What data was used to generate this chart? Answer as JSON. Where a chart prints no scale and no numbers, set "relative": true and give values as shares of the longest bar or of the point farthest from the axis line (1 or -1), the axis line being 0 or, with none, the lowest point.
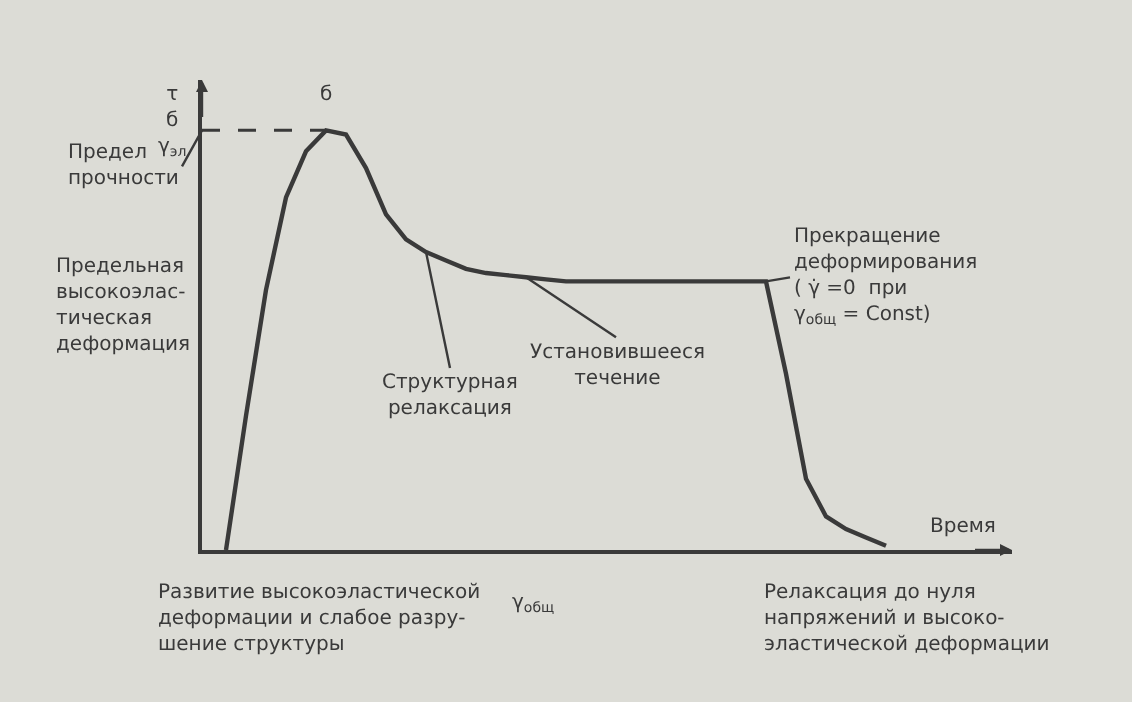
{
  "chart_data": {
    "type": "line",
    "relative": true,
    "tick_labels": false,
    "xlabel": "Время",
    "ylabel": "τ\nб\nγ$_{эл}$",
    "line_style": "solid",
    "categories": [
      null,
      null,
      null,
      null,
      null,
      null,
      null,
      null,
      null,
      null,
      null,
      null,
      null,
      null,
      null,
      null,
      null,
      null,
      null,
      null,
      null,
      null,
      null,
      null,
      null,
      null,
      null,
      null,
      null,
      null,
      null,
      null,
      null,
      null
    ],
    "series": [
      {
        "color": "#3a3a3a",
        "values": [
          0,
          0.32,
          0.62,
          0.84,
          0.95,
          1,
          0.99,
          0.91,
          0.8,
          0.74,
          0.71,
          0.69,
          0.67,
          0.66,
          0.655,
          0.65,
          0.645,
          0.64,
          0.64,
          0.64,
          0.64,
          0.64,
          0.64,
          0.64,
          0.64,
          0.64,
          0.64,
          0.64,
          0.42,
          0.17,
          0.08,
          0.05,
          0.03,
          0.01
        ]
      }
    ],
    "ref_lines": [
      {
        "axis": "y",
        "value": 1,
        "line_style": "dashed",
        "color": "#3a3a3a"
      }
    ],
    "annotations": [
      "б",
      "Предел\nпрочности",
      "Предельная\nвысокоэлас-\nтическая\nдеформация",
      "Структурная\nрелаксация",
      "Установившееся\nтечение",
      "Прекращение\nдеформирования\n( γ̇ =0  при\nγ$_{общ}$ = Const)",
      "Развитие высокоэластической\nдеформации и слабое разру-\nшение структуры",
      "γ$_{общ}$",
      "Релаксация до нуля\nнапряжений и высоко-\nэластической деформации"
    ]
  }
}
